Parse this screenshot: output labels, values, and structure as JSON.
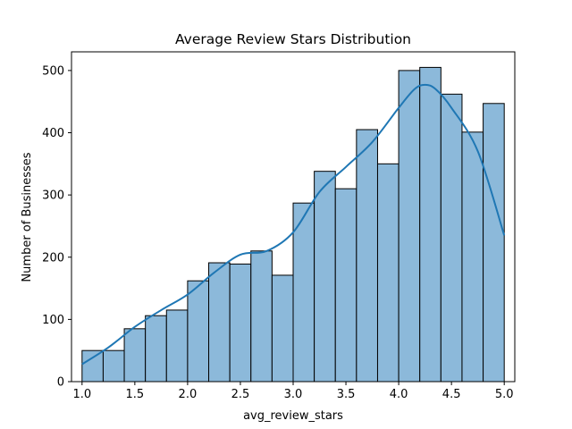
{
  "chart_data": {
    "type": "bar",
    "title": "Average Review Stars Distribution",
    "xlabel": "avg_review_stars",
    "ylabel": "Number of Businesses",
    "xlim": [
      0.9,
      5.1
    ],
    "ylim": [
      0,
      530
    ],
    "xticks": [
      "1.0",
      "1.5",
      "2.0",
      "2.5",
      "3.0",
      "3.5",
      "4.0",
      "4.5",
      "5.0"
    ],
    "yticks": [
      "0",
      "100",
      "200",
      "300",
      "400",
      "500"
    ],
    "bin_edges": [
      1.0,
      1.2,
      1.4,
      1.6,
      1.8,
      2.0,
      2.2,
      2.4,
      2.6,
      2.8,
      3.0,
      3.2,
      3.4,
      3.6,
      3.8,
      4.0,
      4.2,
      4.4,
      4.6,
      4.8,
      5.0
    ],
    "counts": [
      50,
      50,
      85,
      106,
      115,
      162,
      191,
      189,
      210,
      171,
      287,
      338,
      310,
      405,
      350,
      500,
      505,
      462,
      401,
      447
    ],
    "kde": {
      "x": [
        1.0,
        1.25,
        1.5,
        1.75,
        2.0,
        2.25,
        2.5,
        2.75,
        3.0,
        3.25,
        3.5,
        3.75,
        4.0,
        4.15,
        4.25,
        4.35,
        4.5,
        4.75,
        5.0
      ],
      "y": [
        28,
        55,
        88,
        115,
        140,
        175,
        204,
        210,
        240,
        305,
        345,
        385,
        440,
        470,
        477,
        470,
        440,
        370,
        235
      ]
    },
    "grid": false,
    "colors": {
      "bar_fill": "#8cb9da",
      "bar_edge": "#000000",
      "kde_line": "#1f77b4"
    }
  }
}
